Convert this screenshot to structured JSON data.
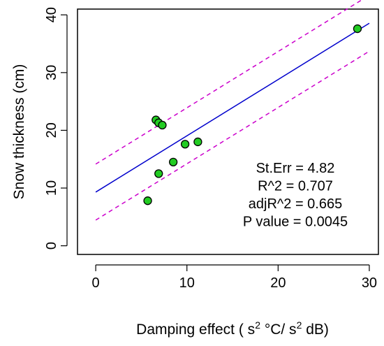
{
  "chart_data": {
    "type": "scatter",
    "xlabel": "Damping effect",
    "ylabel": "Snow thickness (cm)",
    "xlim": [
      -2,
      31
    ],
    "ylim": [
      -1.5,
      41
    ],
    "x_ticks": [
      0,
      10,
      20,
      30
    ],
    "y_ticks": [
      0,
      10,
      20,
      30,
      40
    ],
    "grid": false,
    "points": [
      {
        "x": 5.7,
        "y": 7.8
      },
      {
        "x": 6.6,
        "y": 21.8
      },
      {
        "x": 6.9,
        "y": 12.5
      },
      {
        "x": 6.9,
        "y": 21.3
      },
      {
        "x": 7.3,
        "y": 20.9
      },
      {
        "x": 8.5,
        "y": 14.5
      },
      {
        "x": 9.8,
        "y": 17.6
      },
      {
        "x": 11.2,
        "y": 18.0
      },
      {
        "x": 28.7,
        "y": 37.6
      }
    ],
    "fit_line": {
      "intercept": 9.3,
      "slope": 0.975,
      "x_range": [
        0,
        30
      ],
      "color": "#0000cc"
    },
    "confidence_band": {
      "offset": 4.85,
      "color": "#cc00cc",
      "style": "dashed"
    },
    "point_style": {
      "fill": "#22cc22",
      "stroke": "#000000"
    },
    "annotation": {
      "lines": [
        "St.Err = 4.82",
        "R^2 = 0.707",
        "adjR^2 = 0.665",
        "P value = 0.0045"
      ]
    }
  }
}
